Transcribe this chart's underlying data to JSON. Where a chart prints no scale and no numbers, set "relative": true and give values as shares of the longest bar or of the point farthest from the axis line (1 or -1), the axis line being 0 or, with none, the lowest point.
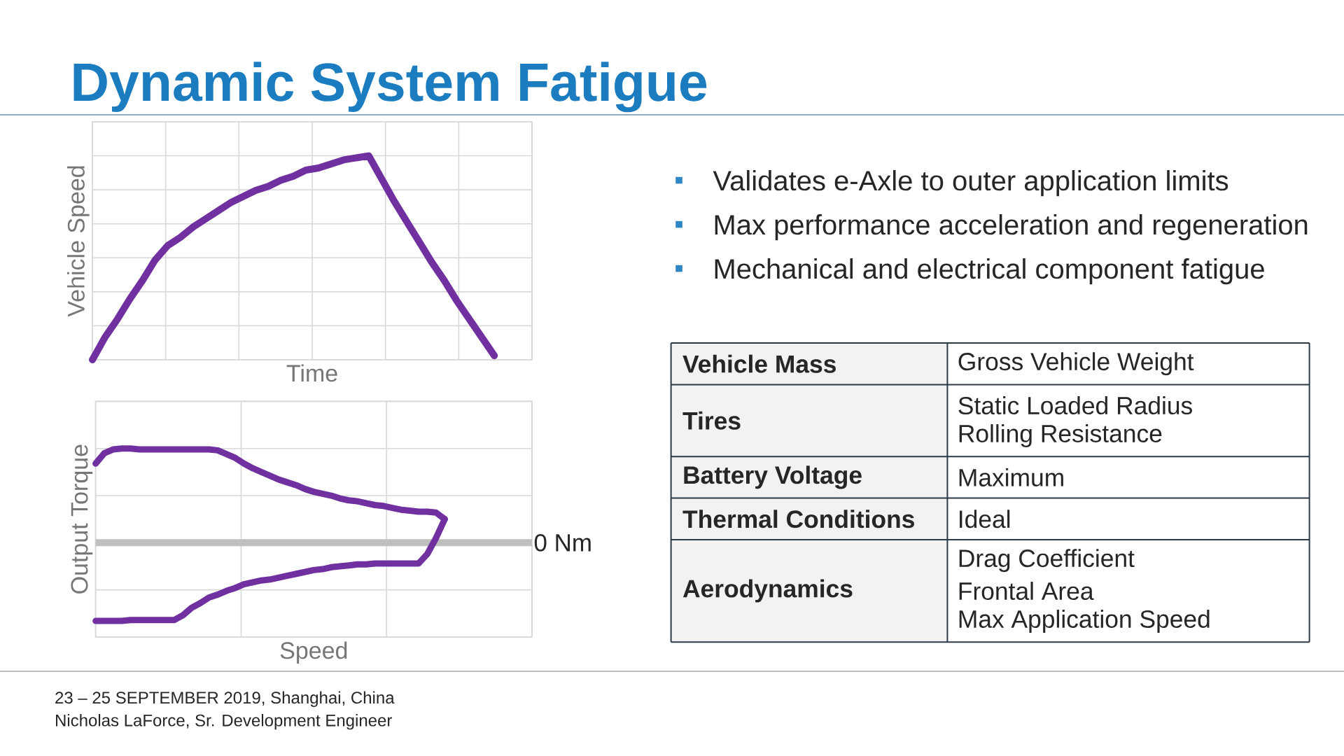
{
  "chart_data": [
    {
      "type": "line",
      "title": "Dynamic System Fatigue",
      "xlabel": "Time",
      "ylabel": "Vehicle Speed",
      "relative": true,
      "grid": true,
      "categories": [
        null,
        null,
        null,
        null,
        null,
        null,
        null,
        null,
        null,
        null,
        null,
        null,
        null,
        null,
        null,
        null,
        null,
        null,
        null,
        null,
        null,
        null,
        null,
        null,
        null,
        null,
        null,
        null,
        null,
        null,
        null,
        null,
        null,
        null,
        null,
        null
      ],
      "series": [
        {
          "color": "#7030a0",
          "values": [
            0.0,
            0.11,
            0.2,
            0.3,
            0.39,
            0.49,
            0.56,
            0.6,
            0.65,
            0.69,
            0.73,
            0.77,
            0.8,
            0.83,
            0.85,
            0.88,
            0.9,
            0.93,
            0.94,
            0.96,
            0.98,
            0.99,
            1.0,
            0.89,
            0.78,
            0.68,
            0.58,
            0.48,
            0.39,
            0.29,
            0.2,
            0.11,
            0.02,
            null,
            null,
            null
          ]
        }
      ]
    },
    {
      "type": "line",
      "xlabel": "Speed",
      "ylabel": "Output Torque",
      "relative": true,
      "grid": true,
      "categories": [
        null,
        null,
        null,
        null,
        null,
        null,
        null,
        null,
        null,
        null,
        null,
        null,
        null,
        null,
        null,
        null,
        null,
        null,
        null,
        null,
        null,
        null,
        null,
        null,
        null,
        null,
        null,
        null,
        null,
        null,
        null,
        null,
        null,
        null,
        null,
        null,
        null,
        null,
        null,
        null,
        null,
        null,
        null,
        null,
        null,
        null,
        null,
        null,
        null,
        null,
        null
      ],
      "ref_lines": [
        {
          "axis": "y",
          "value": 0,
          "label": "0 Nm",
          "color": "#bfbfbf"
        }
      ],
      "series": [
        {
          "color": "#7030a0",
          "values": [
            0.84,
            0.95,
            0.99,
            1.0,
            1.0,
            0.99,
            0.99,
            0.99,
            0.99,
            0.99,
            0.99,
            0.99,
            0.99,
            0.99,
            0.98,
            0.94,
            0.9,
            0.84,
            0.79,
            0.75,
            0.71,
            0.67,
            0.64,
            0.61,
            0.57,
            0.54,
            0.52,
            0.5,
            0.47,
            0.45,
            0.44,
            0.42,
            0.4,
            0.39,
            0.37,
            0.35,
            0.34,
            0.33,
            0.33,
            0.32,
            0.25,
            null,
            null,
            null,
            null,
            null,
            null,
            null,
            null,
            null,
            null
          ]
        },
        {
          "color": "#7030a0",
          "values": [
            -0.83,
            -0.83,
            -0.83,
            -0.83,
            -0.82,
            -0.82,
            -0.82,
            -0.82,
            -0.82,
            -0.82,
            -0.77,
            -0.69,
            -0.64,
            -0.58,
            -0.55,
            -0.51,
            -0.48,
            -0.44,
            -0.42,
            -0.4,
            -0.39,
            -0.37,
            -0.35,
            -0.33,
            -0.31,
            -0.29,
            -0.28,
            -0.26,
            -0.25,
            -0.24,
            -0.23,
            -0.23,
            -0.22,
            -0.22,
            -0.22,
            -0.22,
            -0.22,
            -0.22,
            -0.12,
            0.05,
            0.25,
            null,
            null,
            null,
            null,
            null,
            null,
            null,
            null,
            null,
            null
          ]
        }
      ],
      "annotations": [
        "23 – 25 SEPTEMBER 2019, Shanghai, China",
        "Nicholas LaForce, Sr. Development Engineer"
      ]
    },
    {
      "type": "other",
      "annotations": [
        "Validates e-Axle to outer application limits",
        "Max performance acceleration and regeneration",
        "Mechanical and electrical component fatigue"
      ],
      "y_categories": [
        "Vehicle Mass",
        "Tires",
        "Battery Voltage",
        "Thermal Conditions",
        "Aerodynamics"
      ],
      "y2_categories": [
        "Gross Vehicle Weight",
        [
          "Static Loaded Radius",
          "Rolling Resistance"
        ],
        "Maximum",
        "Ideal",
        [
          "Drag Coefficient",
          "Frontal Area",
          "Max Application Speed"
        ]
      ]
    }
  ]
}
